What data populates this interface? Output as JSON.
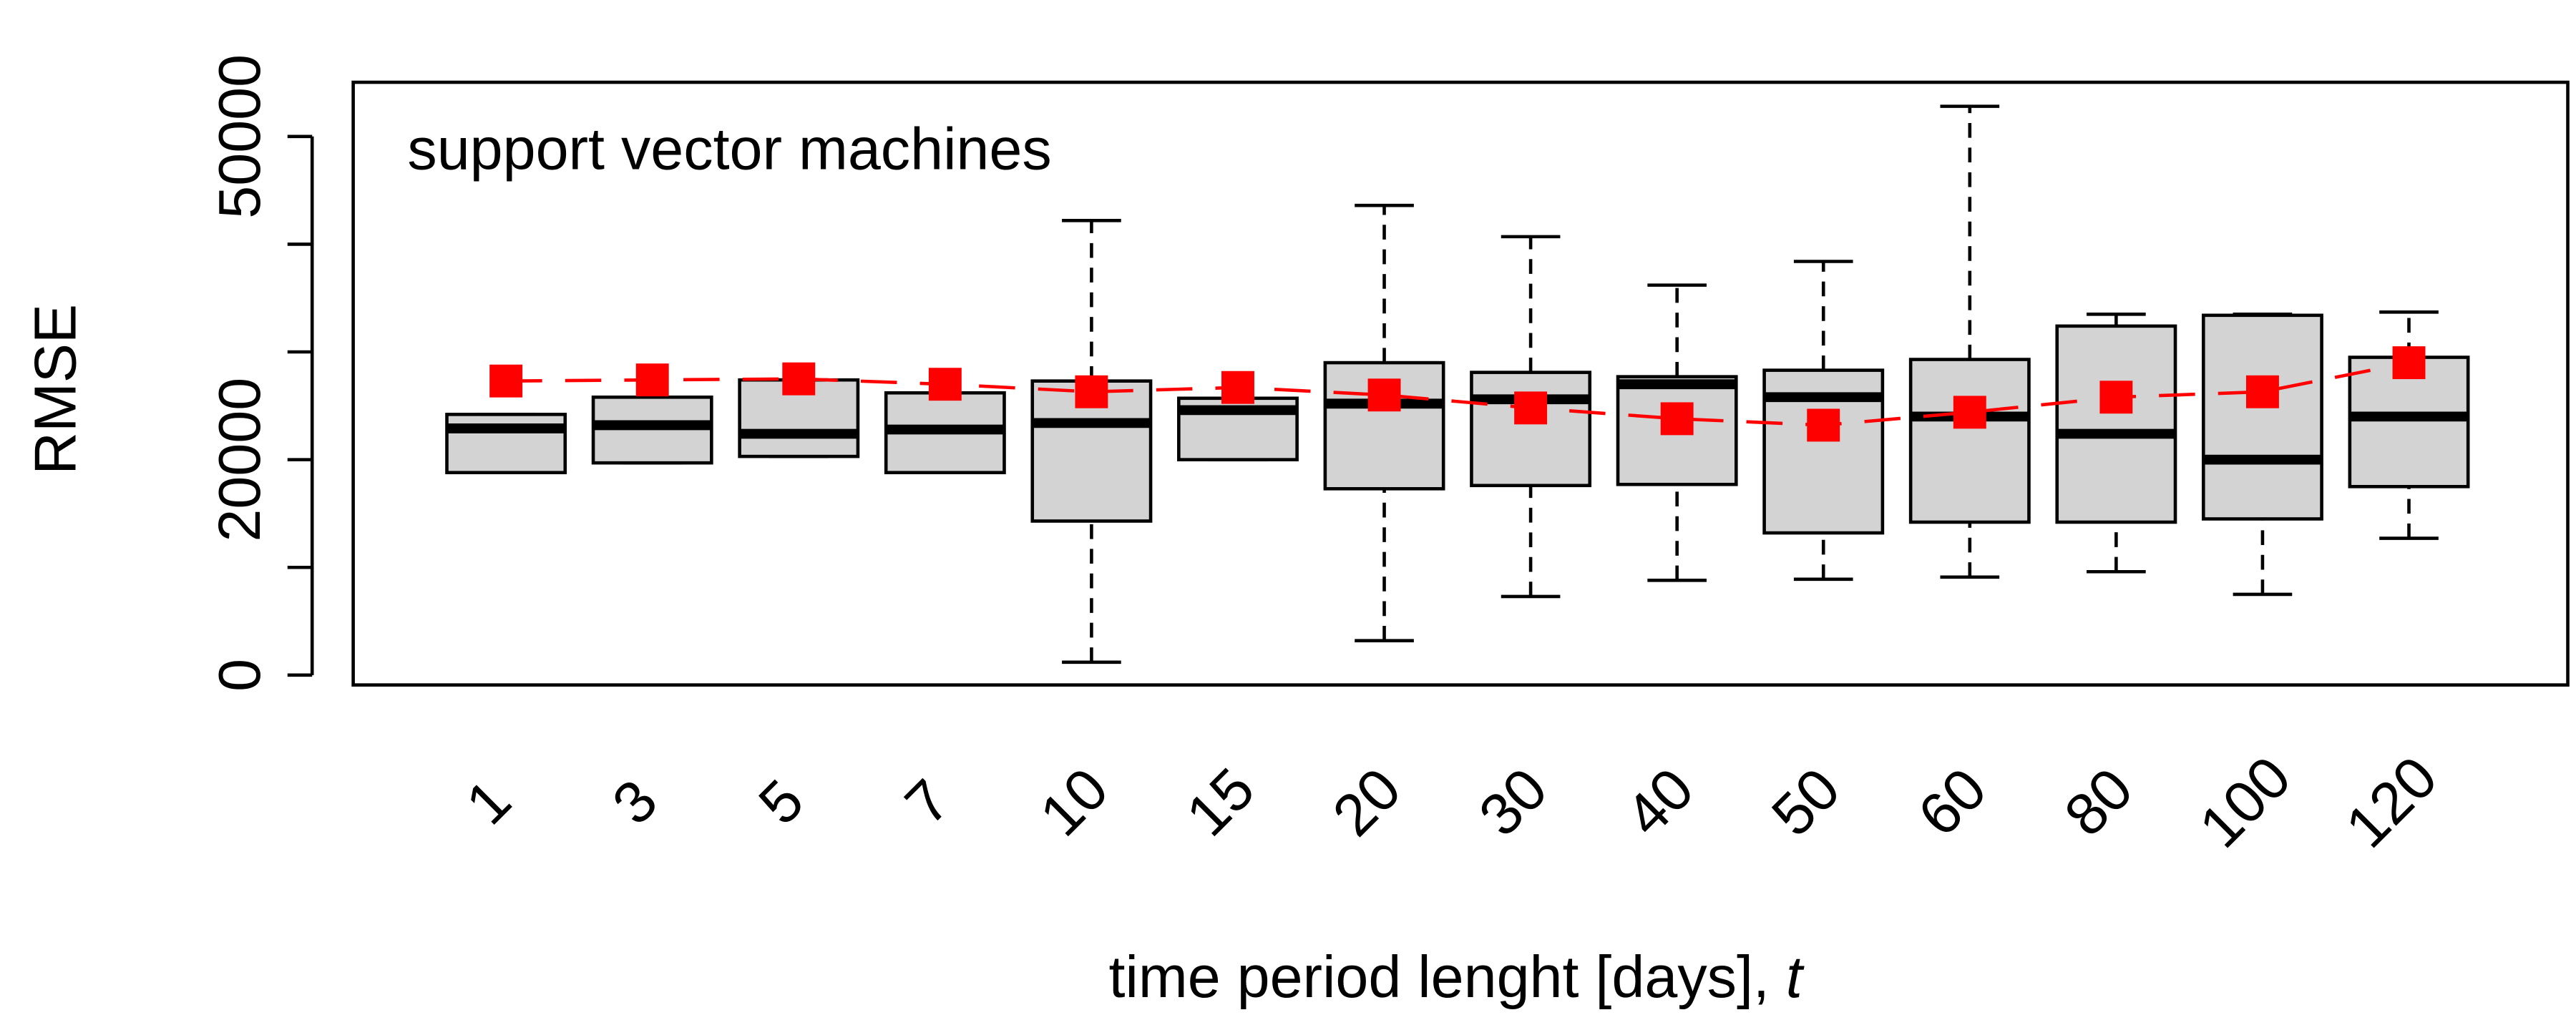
{
  "chart_data": {
    "type": "box",
    "title": "support vector machines",
    "xlabel": "time period lenght [days], ",
    "xlabel_italic": "t",
    "ylabel": "RMSE",
    "ylim": [
      0,
      50000
    ],
    "yticks": [
      0,
      10000,
      20000,
      30000,
      40000,
      50000
    ],
    "ytick_labels": [
      "0",
      "",
      "20000",
      "",
      "",
      "50000"
    ],
    "categories": [
      "1",
      "3",
      "5",
      "7",
      "10",
      "15",
      "20",
      "30",
      "40",
      "50",
      "60",
      "80",
      "100",
      "120"
    ],
    "boxes": [
      {
        "whisker_low": 18800,
        "q1": 18800,
        "median": 22900,
        "q3": 24200,
        "whisker_high": 24200
      },
      {
        "whisker_low": 19700,
        "q1": 19700,
        "median": 23200,
        "q3": 25800,
        "whisker_high": 25800
      },
      {
        "whisker_low": 20300,
        "q1": 20300,
        "median": 22400,
        "q3": 27400,
        "whisker_high": 27400
      },
      {
        "whisker_low": 18800,
        "q1": 18800,
        "median": 22800,
        "q3": 26200,
        "whisker_high": 26200
      },
      {
        "whisker_low": 1200,
        "q1": 14300,
        "median": 23400,
        "q3": 27300,
        "whisker_high": 42200
      },
      {
        "whisker_low": 20000,
        "q1": 20000,
        "median": 24600,
        "q3": 25700,
        "whisker_high": 25700
      },
      {
        "whisker_low": 3200,
        "q1": 17300,
        "median": 25200,
        "q3": 29000,
        "whisker_high": 43600
      },
      {
        "whisker_low": 7300,
        "q1": 17600,
        "median": 25600,
        "q3": 28100,
        "whisker_high": 40700
      },
      {
        "whisker_low": 8800,
        "q1": 17700,
        "median": 27000,
        "q3": 27700,
        "whisker_high": 36200
      },
      {
        "whisker_low": 8900,
        "q1": 13200,
        "median": 25800,
        "q3": 28300,
        "whisker_high": 38400
      },
      {
        "whisker_low": 9100,
        "q1": 14200,
        "median": 24000,
        "q3": 29300,
        "whisker_high": 52800
      },
      {
        "whisker_low": 9600,
        "q1": 14200,
        "median": 22400,
        "q3": 32400,
        "whisker_high": 33500
      },
      {
        "whisker_low": 7500,
        "q1": 14500,
        "median": 20000,
        "q3": 33400,
        "whisker_high": 33500
      },
      {
        "whisker_low": 12700,
        "q1": 17500,
        "median": 24000,
        "q3": 29500,
        "whisker_high": 33700
      }
    ],
    "means": [
      27300,
      27400,
      27500,
      27000,
      26300,
      26700,
      26000,
      24800,
      23800,
      23200,
      24400,
      25800,
      26300,
      29000
    ],
    "box_fill": "#d3d3d3",
    "mean_color": "#ff0000",
    "grid": false
  }
}
